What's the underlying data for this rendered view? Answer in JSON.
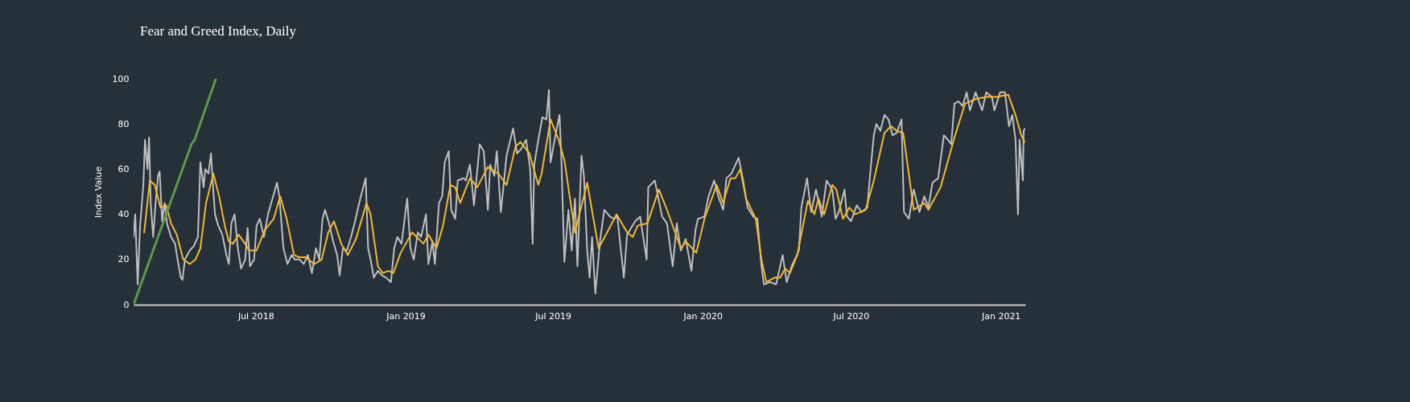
{
  "chart_data": {
    "type": "line",
    "title": "Fear and Greed Index, Daily",
    "ylabel": "Index Value",
    "xlim": [
      "2018-02-01",
      "2021-01-31"
    ],
    "xticks": [
      {
        "value": "2018-07-01",
        "label": "Jul 2018"
      },
      {
        "value": "2019-01-01",
        "label": "Jan 2019"
      },
      {
        "value": "2019-07-01",
        "label": "Jul 2019"
      },
      {
        "value": "2020-01-01",
        "label": "Jan 2020"
      },
      {
        "value": "2020-07-01",
        "label": "Jul 2020"
      },
      {
        "value": "2021-01-01",
        "label": "Jan 2021"
      }
    ],
    "ylim": [
      0,
      100
    ],
    "yticks": [
      0,
      20,
      40,
      60,
      80,
      100
    ],
    "grid": false,
    "line_style": "solid",
    "marker": "none",
    "series": [
      {
        "color": "#bfbfbf",
        "x": [
          "2018-02-01",
          "2018-02-03",
          "2018-02-06",
          "2018-02-09",
          "2018-02-13",
          "2018-02-15",
          "2018-02-18",
          "2018-02-20",
          "2018-02-22",
          "2018-02-25",
          "2018-02-28",
          "2018-03-03",
          "2018-03-05",
          "2018-03-08",
          "2018-03-11",
          "2018-03-14",
          "2018-03-19",
          "2018-03-24",
          "2018-03-27",
          "2018-03-31",
          "2018-04-02",
          "2018-04-05",
          "2018-04-11",
          "2018-04-16",
          "2018-04-21",
          "2018-04-24",
          "2018-04-28",
          "2018-04-30",
          "2018-05-04",
          "2018-05-07",
          "2018-05-10",
          "2018-05-12",
          "2018-05-16",
          "2018-05-21",
          "2018-05-26",
          "2018-05-29",
          "2018-06-01",
          "2018-06-05",
          "2018-06-09",
          "2018-06-13",
          "2018-06-18",
          "2018-06-21",
          "2018-06-24",
          "2018-06-29",
          "2018-07-02",
          "2018-07-06",
          "2018-07-11",
          "2018-07-16",
          "2018-07-20",
          "2018-07-24",
          "2018-07-27",
          "2018-07-30",
          "2018-08-04",
          "2018-08-09",
          "2018-08-14",
          "2018-08-18",
          "2018-08-24",
          "2018-08-29",
          "2018-09-03",
          "2018-09-08",
          "2018-09-13",
          "2018-09-17",
          "2018-09-21",
          "2018-09-24",
          "2018-09-29",
          "2018-10-04",
          "2018-10-09",
          "2018-10-12",
          "2018-10-16",
          "2018-10-21",
          "2018-10-26",
          "2018-10-31",
          "2018-11-05",
          "2018-11-10",
          "2018-11-13",
          "2018-11-16",
          "2018-11-19",
          "2018-11-23",
          "2018-11-28",
          "2018-12-03",
          "2018-12-08",
          "2018-12-14",
          "2018-12-18",
          "2018-12-22",
          "2018-12-27",
          "2019-01-03",
          "2019-01-07",
          "2019-01-11",
          "2019-01-16",
          "2019-01-20",
          "2019-01-26",
          "2019-01-29",
          "2019-02-03",
          "2019-02-06",
          "2019-02-11",
          "2019-02-15",
          "2019-02-18",
          "2019-02-23",
          "2019-02-26",
          "2019-03-03",
          "2019-03-06",
          "2019-03-13",
          "2019-03-16",
          "2019-03-21",
          "2019-03-26",
          "2019-04-02",
          "2019-04-07",
          "2019-04-12",
          "2019-04-15",
          "2019-04-20",
          "2019-04-23",
          "2019-04-28",
          "2019-05-05",
          "2019-05-13",
          "2019-05-18",
          "2019-05-23",
          "2019-05-29",
          "2019-06-03",
          "2019-06-06",
          "2019-06-08",
          "2019-06-13",
          "2019-06-18",
          "2019-06-23",
          "2019-06-26",
          "2019-06-28",
          "2019-07-03",
          "2019-07-09",
          "2019-07-11",
          "2019-07-15",
          "2019-07-20",
          "2019-07-24",
          "2019-07-28",
          "2019-07-31",
          "2019-08-05",
          "2019-08-08",
          "2019-08-12",
          "2019-08-15",
          "2019-08-18",
          "2019-08-22",
          "2019-08-28",
          "2019-09-02",
          "2019-09-09",
          "2019-09-14",
          "2019-09-18",
          "2019-09-26",
          "2019-09-30",
          "2019-10-10",
          "2019-10-16",
          "2019-10-24",
          "2019-10-26",
          "2019-11-03",
          "2019-11-07",
          "2019-11-12",
          "2019-11-18",
          "2019-11-25",
          "2019-11-30",
          "2019-12-05",
          "2019-12-11",
          "2019-12-18",
          "2019-12-23",
          "2019-12-26",
          "2020-01-03",
          "2020-01-08",
          "2020-01-15",
          "2020-01-20",
          "2020-01-26",
          "2020-01-30",
          "2020-02-05",
          "2020-02-14",
          "2020-02-19",
          "2020-02-25",
          "2020-03-03",
          "2020-03-08",
          "2020-03-13",
          "2020-03-16",
          "2020-03-24",
          "2020-03-31",
          "2020-04-08",
          "2020-04-13",
          "2020-04-19",
          "2020-04-28",
          "2020-05-01",
          "2020-05-08",
          "2020-05-13",
          "2020-05-19",
          "2020-05-26",
          "2020-06-01",
          "2020-06-08",
          "2020-06-12",
          "2020-06-16",
          "2020-06-23",
          "2020-06-26",
          "2020-07-01",
          "2020-07-08",
          "2020-07-14",
          "2020-07-21",
          "2020-07-24",
          "2020-07-29",
          "2020-08-01",
          "2020-08-06",
          "2020-08-11",
          "2020-08-16",
          "2020-08-21",
          "2020-08-26",
          "2020-09-01",
          "2020-09-04",
          "2020-09-10",
          "2020-09-16",
          "2020-09-23",
          "2020-09-29",
          "2020-10-04",
          "2020-10-09",
          "2020-10-16",
          "2020-10-23",
          "2020-10-28",
          "2020-11-01",
          "2020-11-05",
          "2020-11-10",
          "2020-11-15",
          "2020-11-20",
          "2020-11-24",
          "2020-12-01",
          "2020-12-09",
          "2020-12-14",
          "2020-12-21",
          "2020-12-24",
          "2020-12-31",
          "2021-01-06",
          "2021-01-11",
          "2021-01-15",
          "2021-01-19",
          "2021-01-22",
          "2021-01-24",
          "2021-01-28",
          "2021-01-29",
          "2021-01-31"
        ],
        "values": [
          30,
          40,
          9,
          35,
          53,
          73,
          60,
          74,
          45,
          30,
          45,
          57,
          59,
          37,
          45,
          36,
          30,
          27,
          20,
          12,
          11,
          20,
          24,
          26,
          30,
          63,
          52,
          60,
          58,
          67,
          50,
          40,
          35,
          31,
          22,
          18,
          36,
          40,
          25,
          16,
          20,
          34,
          17,
          20,
          35,
          38,
          30,
          40,
          45,
          50,
          54,
          48,
          25,
          18,
          22,
          20,
          20,
          18,
          22,
          14,
          25,
          20,
          38,
          42,
          36,
          28,
          22,
          13,
          25,
          24,
          30,
          37,
          45,
          52,
          56,
          25,
          20,
          12,
          15,
          13,
          12,
          10,
          25,
          30,
          27,
          47,
          25,
          20,
          32,
          30,
          40,
          18,
          28,
          18,
          45,
          48,
          63,
          68,
          42,
          38,
          55,
          56,
          55,
          62,
          44,
          71,
          68,
          42,
          62,
          57,
          68,
          41,
          66,
          78,
          67,
          69,
          73,
          60,
          27,
          62,
          73,
          83,
          82,
          95,
          63,
          73,
          84,
          68,
          19,
          42,
          24,
          47,
          17,
          66,
          57,
          24,
          12,
          30,
          5,
          29,
          42,
          39,
          38,
          39,
          12,
          31,
          37,
          39,
          20,
          52,
          55,
          48,
          39,
          36,
          17,
          36,
          24,
          29,
          15,
          33,
          38,
          39,
          48,
          55,
          48,
          42,
          56,
          58,
          65,
          56,
          43,
          39,
          38,
          17,
          9,
          10,
          9,
          22,
          10,
          17,
          24,
          43,
          56,
          41,
          51,
          39,
          55,
          51,
          38,
          41,
          51,
          39,
          37,
          44,
          41,
          43,
          56,
          75,
          80,
          77,
          84,
          82,
          75,
          76,
          82,
          41,
          38,
          51,
          41,
          48,
          43,
          54,
          56,
          75,
          73,
          71,
          89,
          90,
          88,
          94,
          86,
          94,
          86,
          94,
          92,
          86,
          94,
          94,
          79,
          84,
          73,
          40,
          73,
          55,
          77,
          78
        ]
      },
      {
        "color": "#f5b82e",
        "x": [
          "2018-02-14",
          "2018-02-21",
          "2018-02-27",
          "2018-03-06",
          "2018-03-13",
          "2018-03-19",
          "2018-03-26",
          "2018-04-03",
          "2018-04-11",
          "2018-04-18",
          "2018-04-24",
          "2018-05-01",
          "2018-05-10",
          "2018-05-17",
          "2018-05-24",
          "2018-05-29",
          "2018-06-03",
          "2018-06-10",
          "2018-06-18",
          "2018-06-23",
          "2018-07-02",
          "2018-07-12",
          "2018-07-23",
          "2018-07-31",
          "2018-08-08",
          "2018-08-17",
          "2018-08-23",
          "2018-08-31",
          "2018-09-11",
          "2018-09-20",
          "2018-09-28",
          "2018-10-05",
          "2018-10-14",
          "2018-10-22",
          "2018-11-01",
          "2018-11-14",
          "2018-11-19",
          "2018-11-28",
          "2018-12-04",
          "2018-12-11",
          "2018-12-17",
          "2018-12-26",
          "2019-01-09",
          "2019-01-23",
          "2019-01-29",
          "2019-02-08",
          "2019-02-16",
          "2019-02-25",
          "2019-03-03",
          "2019-03-09",
          "2019-03-21",
          "2019-03-30",
          "2019-04-12",
          "2019-04-25",
          "2019-05-05",
          "2019-05-16",
          "2019-05-22",
          "2019-06-02",
          "2019-06-13",
          "2019-06-17",
          "2019-06-28",
          "2019-07-08",
          "2019-07-15",
          "2019-07-28",
          "2019-08-12",
          "2019-08-26",
          "2019-09-07",
          "2019-09-17",
          "2019-09-30",
          "2019-10-07",
          "2019-10-13",
          "2019-10-25",
          "2019-11-08",
          "2019-11-18",
          "2019-12-05",
          "2019-12-11",
          "2019-12-24",
          "2020-01-03",
          "2020-01-18",
          "2020-01-26",
          "2020-02-04",
          "2020-02-10",
          "2020-02-16",
          "2020-02-23",
          "2020-03-06",
          "2020-03-13",
          "2020-03-19",
          "2020-03-29",
          "2020-04-05",
          "2020-04-11",
          "2020-04-17",
          "2020-04-26",
          "2020-05-09",
          "2020-05-17",
          "2020-05-22",
          "2020-05-29",
          "2020-06-08",
          "2020-06-13",
          "2020-06-21",
          "2020-06-29",
          "2020-07-06",
          "2020-07-19",
          "2020-07-29",
          "2020-08-11",
          "2020-08-19",
          "2020-08-26",
          "2020-09-03",
          "2020-09-16",
          "2020-09-29",
          "2020-10-04",
          "2020-10-19",
          "2020-11-05",
          "2020-11-18",
          "2020-12-01",
          "2020-12-14",
          "2020-12-27",
          "2021-01-10",
          "2021-01-19",
          "2021-01-26",
          "2021-01-30"
        ],
        "values": [
          32,
          55,
          53,
          43,
          44,
          36,
          31,
          20,
          18,
          20,
          25,
          45,
          58,
          48,
          35,
          28,
          27,
          31,
          27,
          24,
          24,
          33,
          38,
          48,
          38,
          22,
          21,
          21,
          18,
          20,
          32,
          37,
          27,
          22,
          29,
          45,
          40,
          17,
          14,
          15,
          14,
          23,
          32,
          27,
          31,
          25,
          35,
          53,
          52,
          45,
          56,
          52,
          61,
          58,
          53,
          70,
          72,
          67,
          53,
          58,
          82,
          73,
          64,
          32,
          54,
          25,
          33,
          40,
          32,
          30,
          35,
          36,
          51,
          42,
          25,
          28,
          23,
          38,
          53,
          45,
          56,
          56,
          60,
          47,
          38,
          20,
          10,
          12,
          12,
          16,
          14,
          22,
          46,
          40,
          47,
          40,
          53,
          51,
          38,
          43,
          40,
          42,
          55,
          76,
          79,
          77,
          76,
          42,
          45,
          42,
          52,
          74,
          89,
          91,
          92,
          92,
          93,
          84,
          75,
          72
        ]
      },
      {
        "color": "#5a9a4a",
        "x": [
          "2018-02-01",
          "2018-04-13",
          "2018-04-17",
          "2018-05-13"
        ],
        "values": [
          0,
          71,
          73,
          100
        ]
      }
    ]
  }
}
